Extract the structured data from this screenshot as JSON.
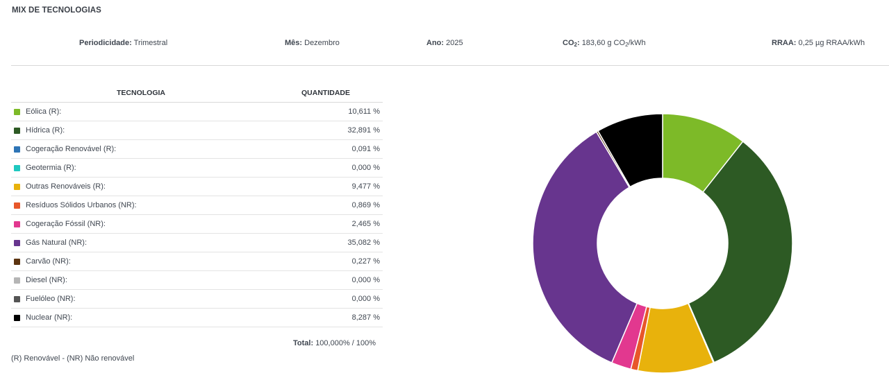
{
  "section_title": "MIX DE TECNOLOGIAS",
  "info": {
    "periodicidade_label": "Periodicidade:",
    "periodicidade_value": "Trimestral",
    "mes_label": "Mês:",
    "mes_value": "Dezembro",
    "ano_label": "Ano:",
    "ano_value": "2025",
    "co2_label_main": "CO",
    "co2_label_sub": "2",
    "co2_label_colon": ":",
    "co2_value_pre": "183,60 g CO",
    "co2_value_sub": "2",
    "co2_value_post": "/kWh",
    "rraa_label": "RRAA:",
    "rraa_value": "0,25 µg RRAA/kWh"
  },
  "table": {
    "header_tech": "TECNOLOGIA",
    "header_qty": "QUANTIDADE",
    "rows": [
      {
        "label": "Eólica (R):",
        "value": "10,611 %",
        "color": "#7dba28"
      },
      {
        "label": "Hídrica (R):",
        "value": "32,891 %",
        "color": "#2d5a24"
      },
      {
        "label": "Cogeração Renovável (R):",
        "value": "0,091 %",
        "color": "#2e75b6"
      },
      {
        "label": "Geotermia (R):",
        "value": "0,000 %",
        "color": "#1fc8c0"
      },
      {
        "label": "Outras Renováveis (R):",
        "value": "9,477 %",
        "color": "#e8b20c"
      },
      {
        "label": "Resíduos Sólidos Urbanos (NR):",
        "value": "0,869 %",
        "color": "#e8572a"
      },
      {
        "label": "Cogeração Fóssil (NR):",
        "value": "2,465 %",
        "color": "#e2388f"
      },
      {
        "label": "Gás Natural (NR):",
        "value": "35,082 %",
        "color": "#67358e"
      },
      {
        "label": "Carvão (NR):",
        "value": "0,227 %",
        "color": "#5c3410"
      },
      {
        "label": "Diesel (NR):",
        "value": "0,000 %",
        "color": "#b5b5b5"
      },
      {
        "label": "Fuelóleo (NR):",
        "value": "0,000 %",
        "color": "#555555"
      },
      {
        "label": "Nuclear (NR):",
        "value": "8,287 %",
        "color": "#000000"
      }
    ],
    "total_label": "Total:",
    "total_value": "100,000% / 100%"
  },
  "legend_note": "(R) Renovável - (NR) Não renovável",
  "chart_data": {
    "type": "pie",
    "subtype": "donut",
    "categories": [
      "Eólica (R)",
      "Hídrica (R)",
      "Cogeração Renovável (R)",
      "Geotermia (R)",
      "Outras Renováveis (R)",
      "Resíduos Sólidos Urbanos (NR)",
      "Cogeração Fóssil (NR)",
      "Gás Natural (NR)",
      "Carvão (NR)",
      "Diesel (NR)",
      "Fuelóleo (NR)",
      "Nuclear (NR)"
    ],
    "values": [
      10.611,
      32.891,
      0.091,
      0.0,
      9.477,
      0.869,
      2.465,
      35.082,
      0.227,
      0.0,
      0.0,
      8.287
    ],
    "colors": [
      "#7dba28",
      "#2d5a24",
      "#2e75b6",
      "#1fc8c0",
      "#e8b20c",
      "#e8572a",
      "#e2388f",
      "#67358e",
      "#5c3410",
      "#b5b5b5",
      "#555555",
      "#000000"
    ],
    "start": "top",
    "direction": "clockwise"
  }
}
